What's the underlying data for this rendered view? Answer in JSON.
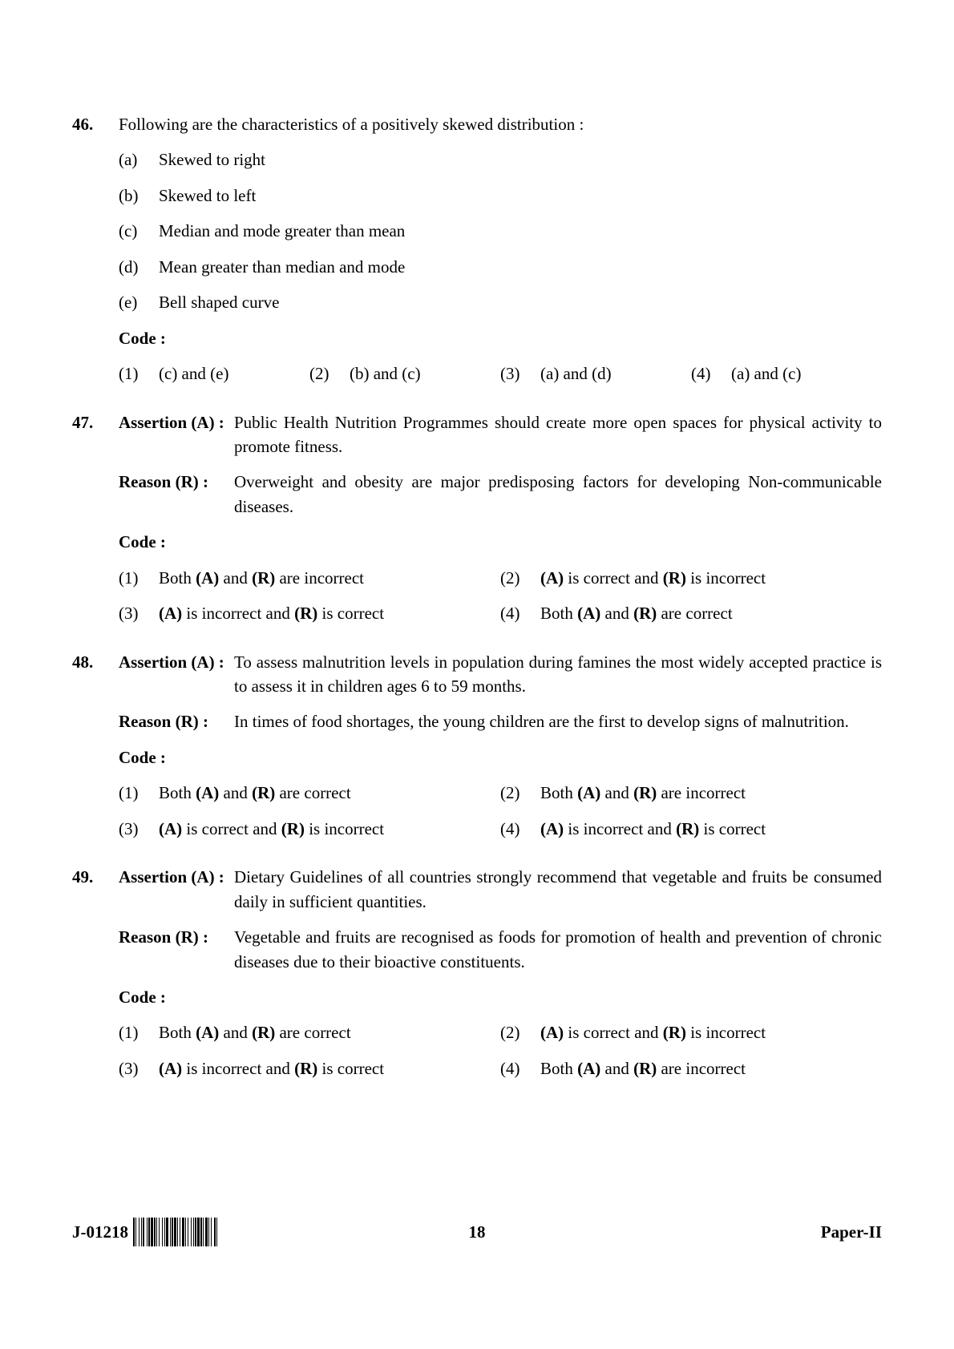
{
  "questions": [
    {
      "num": "46.",
      "prompt": "Following are the characteristics of a positively skewed distribution :",
      "subs": [
        {
          "letter": "(a)",
          "text": "Skewed to right"
        },
        {
          "letter": "(b)",
          "text": "Skewed to left"
        },
        {
          "letter": "(c)",
          "text": "Median and mode greater than mean"
        },
        {
          "letter": "(d)",
          "text": "Mean greater than median and mode"
        },
        {
          "letter": "(e)",
          "text": "Bell shaped curve"
        }
      ],
      "code_label": "Code :",
      "options_layout": "w25",
      "options": [
        {
          "num": "(1)",
          "html": "(c) and (e)"
        },
        {
          "num": "(2)",
          "html": "(b) and (c)"
        },
        {
          "num": "(3)",
          "html": "(a) and (d)"
        },
        {
          "num": "(4)",
          "html": "(a) and (c)"
        }
      ]
    },
    {
      "num": "47.",
      "assertion_label": "Assertion (A) :",
      "assertion": "Public Health Nutrition Programmes should create more open spaces for physical activity to promote fitness.",
      "reason_label": "Reason (R) :",
      "reason": "Overweight and obesity are major predisposing factors for developing Non-communicable diseases.",
      "code_label": "Code :",
      "options_layout": "w50",
      "options": [
        {
          "num": "(1)",
          "html": "Both <span class='b'>(A)</span> and <span class='b'>(R)</span> are incorrect"
        },
        {
          "num": "(2)",
          "html": "<span class='b'>(A)</span> is correct and <span class='b'>(R)</span> is incorrect"
        },
        {
          "num": "(3)",
          "html": "<span class='b'>(A)</span> is incorrect and <span class='b'>(R)</span> is correct"
        },
        {
          "num": "(4)",
          "html": "Both <span class='b'>(A)</span> and <span class='b'>(R)</span> are correct"
        }
      ]
    },
    {
      "num": "48.",
      "assertion_label": "Assertion (A) :",
      "assertion": "To assess malnutrition levels in population during famines the most widely accepted practice is to assess it in children ages 6 to 59 months.",
      "reason_label": "Reason (R) :",
      "reason": "In times of food shortages, the young children are the first to develop signs of malnutrition.",
      "code_label": "Code :",
      "options_layout": "w50",
      "options": [
        {
          "num": "(1)",
          "html": "Both <span class='b'>(A)</span> and <span class='b'>(R)</span> are correct"
        },
        {
          "num": "(2)",
          "html": "Both <span class='b'>(A)</span> and <span class='b'>(R)</span> are incorrect"
        },
        {
          "num": "(3)",
          "html": "<span class='b'>(A)</span> is correct and <span class='b'>(R)</span> is incorrect"
        },
        {
          "num": "(4)",
          "html": "<span class='b'>(A)</span> is incorrect and <span class='b'>(R)</span> is correct"
        }
      ]
    },
    {
      "num": "49.",
      "assertion_label": "Assertion (A) :",
      "assertion": "Dietary Guidelines of all countries strongly recommend that vegetable and fruits be consumed daily in sufficient quantities.",
      "reason_label": "Reason (R) :",
      "reason": "Vegetable and fruits are recognised as foods for promotion of health and prevention of chronic diseases due to their bioactive constituents.",
      "code_label": "Code :",
      "options_layout": "w50",
      "options": [
        {
          "num": "(1)",
          "html": "Both <span class='b'>(A)</span> and <span class='b'>(R)</span> are correct"
        },
        {
          "num": "(2)",
          "html": "<span class='b'>(A)</span> is correct and <span class='b'>(R)</span> is incorrect"
        },
        {
          "num": "(3)",
          "html": "<span class='b'>(A)</span> is incorrect and <span class='b'>(R)</span> is correct"
        },
        {
          "num": "(4)",
          "html": "Both <span class='b'>(A)</span> and <span class='b'>(R)</span> are incorrect"
        }
      ]
    }
  ],
  "footer": {
    "code": "J-01218",
    "page": "18",
    "paper": "Paper-II"
  },
  "barcode_widths": [
    2,
    1,
    1,
    3,
    1,
    2,
    1,
    1,
    2,
    3,
    1,
    1,
    2,
    1,
    3,
    1,
    2,
    1,
    1,
    2,
    1,
    3,
    1,
    2,
    1,
    1,
    3,
    2,
    1,
    1,
    2,
    1,
    3,
    1,
    1,
    2,
    1,
    2,
    3,
    1,
    1,
    2,
    1,
    3,
    1,
    2,
    1,
    1,
    2,
    1,
    3,
    1,
    2,
    1,
    1,
    2,
    3,
    1,
    1,
    2,
    1,
    3,
    2,
    1,
    1
  ]
}
